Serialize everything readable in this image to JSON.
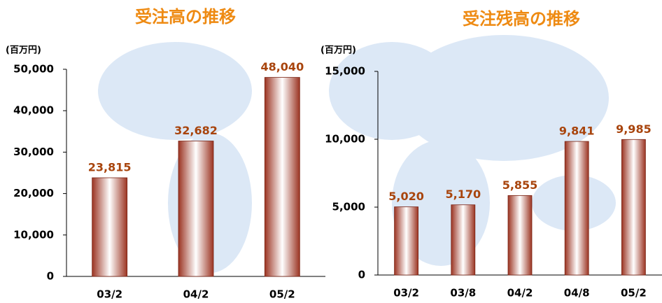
{
  "chart_data": [
    {
      "type": "bar",
      "title": "受注高の推移",
      "y_label": "(百万円)",
      "categories": [
        "03/2",
        "04/2",
        "05/2"
      ],
      "values": [
        23815,
        32682,
        48040
      ],
      "value_labels": [
        "23,815",
        "32,682",
        "48,040"
      ],
      "color": "#9b3422",
      "ylim": [
        0,
        50000
      ],
      "yticks": [
        0,
        {
          "value": 10000,
          "label": "10,000"
        },
        {
          "value": 20000,
          "label": "20,000"
        },
        {
          "value": 30000,
          "label": "30,000"
        },
        {
          "value": 40000,
          "label": "40,000"
        },
        {
          "value": 50000,
          "label": "50,000"
        }
      ]
    },
    {
      "type": "bar",
      "title": "受注残高の推移",
      "y_label": "(百万円)",
      "categories": [
        "03/2",
        "03/8",
        "04/2",
        "04/8",
        "05/2"
      ],
      "values": [
        5020,
        5170,
        5855,
        9841,
        9985
      ],
      "value_labels": [
        "5,020",
        "5,170",
        "5,855",
        "9,841",
        "9,985"
      ],
      "color": "#9b3422",
      "ylim": [
        0,
        15000
      ],
      "yticks": [
        0,
        {
          "value": 5000,
          "label": "5,000"
        },
        {
          "value": 10000,
          "label": "10,000"
        },
        {
          "value": 15000,
          "label": "15,000"
        }
      ]
    }
  ]
}
